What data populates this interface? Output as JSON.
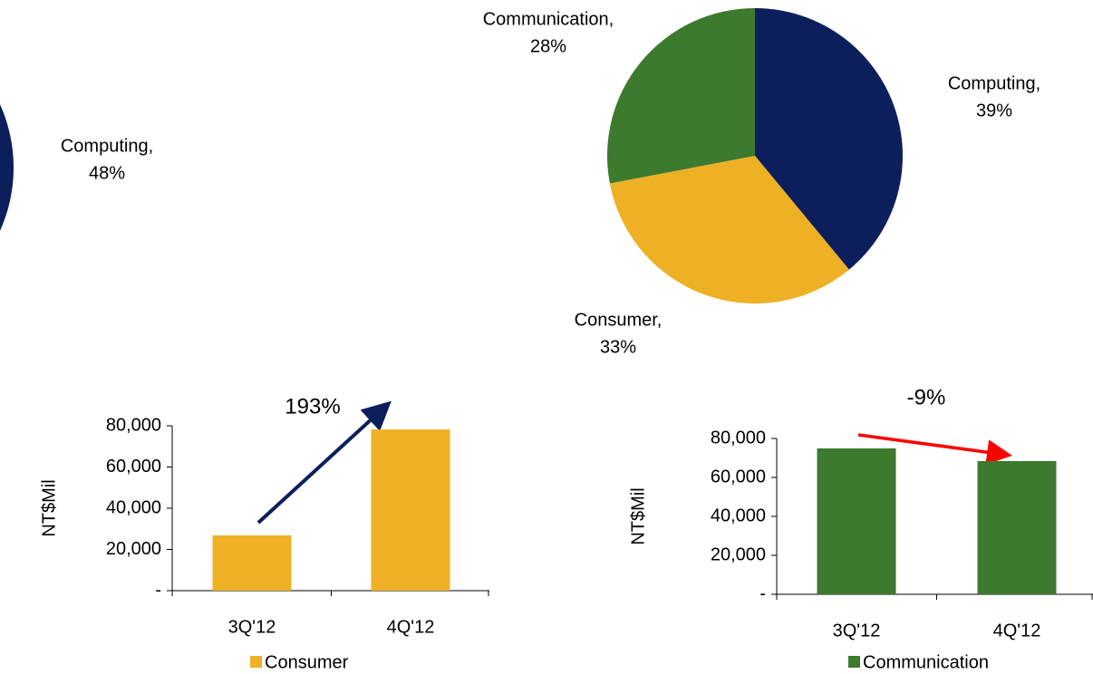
{
  "chart_data": [
    {
      "type": "pie",
      "labels": [
        "Computing,"
      ],
      "values": [
        48
      ],
      "value_labels": [
        "48%"
      ],
      "colors": [
        "#0C1F5C"
      ]
    },
    {
      "type": "pie",
      "labels": [
        "Computing,",
        "Consumer,",
        "Communication,"
      ],
      "values": [
        39,
        33,
        28
      ],
      "value_labels": [
        "39%",
        "33%",
        "28%"
      ],
      "colors": [
        "#0C1F5C",
        "#EEB024",
        "#3C7A2E"
      ]
    },
    {
      "type": "bar",
      "annotation": "193%",
      "y_label": "NT$Mil",
      "categories": [
        "3Q'12",
        "4Q'12"
      ],
      "series": [
        {
          "name": "Consumer",
          "color": "#EEB024",
          "values": [
            26800,
            78200
          ]
        }
      ],
      "ylim": [
        0,
        80000
      ],
      "yticks": [
        {
          "value": 0,
          "label": "-"
        },
        {
          "value": 20000,
          "label": "20,000"
        },
        {
          "value": 40000,
          "label": "40,000"
        },
        {
          "value": 60000,
          "label": "60,000"
        },
        {
          "value": 80000,
          "label": "80,000"
        }
      ],
      "legend": "bottom"
    },
    {
      "type": "bar",
      "annotation": "-9%",
      "y_label": "NT$Mil",
      "categories": [
        "3Q'12",
        "4Q'12"
      ],
      "series": [
        {
          "name": "Communication",
          "color": "#3C7A2E",
          "values": [
            74900,
            68400
          ]
        }
      ],
      "ylim": [
        0,
        80000
      ],
      "yticks": [
        {
          "value": 0,
          "label": "-"
        },
        {
          "value": 20000,
          "label": "20,000"
        },
        {
          "value": 40000,
          "label": "40,000"
        },
        {
          "value": 60000,
          "label": "60,000"
        },
        {
          "value": 80000,
          "label": "80,000"
        }
      ],
      "legend": "bottom"
    }
  ]
}
